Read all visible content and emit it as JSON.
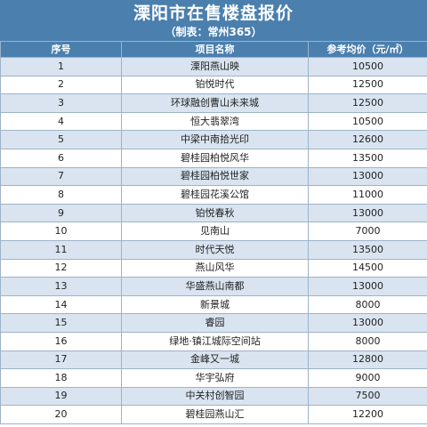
{
  "header": {
    "title": "溧阳市在售楼盘报价",
    "subtitle": "（制表：常州365）"
  },
  "columns": {
    "index": "序号",
    "name": "项目名称",
    "price": "参考均价（元/㎡）"
  },
  "rows": [
    {
      "no": "1",
      "name": "溧阳燕山映",
      "price": "10500"
    },
    {
      "no": "2",
      "name": "铂悦时代",
      "price": "12500"
    },
    {
      "no": "3",
      "name": "环球融创曹山未来城",
      "price": "12500"
    },
    {
      "no": "4",
      "name": "恒大翡翠湾",
      "price": "10500"
    },
    {
      "no": "5",
      "name": "中梁中南拾光印",
      "price": "12600"
    },
    {
      "no": "6",
      "name": "碧桂园柏悦风华",
      "price": "13500"
    },
    {
      "no": "7",
      "name": "碧桂园柏悦世家",
      "price": "13000"
    },
    {
      "no": "8",
      "name": "碧桂园花溪公馆",
      "price": "11000"
    },
    {
      "no": "9",
      "name": "铂悦春秋",
      "price": "13000"
    },
    {
      "no": "10",
      "name": "见南山",
      "price": "7000"
    },
    {
      "no": "11",
      "name": "时代天悦",
      "price": "13500"
    },
    {
      "no": "12",
      "name": "燕山风华",
      "price": "14500"
    },
    {
      "no": "13",
      "name": "华盛燕山南都",
      "price": "13000"
    },
    {
      "no": "14",
      "name": "新景城",
      "price": "8000"
    },
    {
      "no": "15",
      "name": "睿园",
      "price": "13000"
    },
    {
      "no": "16",
      "name": "绿地·镇江城际空间站",
      "price": "8000"
    },
    {
      "no": "17",
      "name": "金峰又一城",
      "price": "12800"
    },
    {
      "no": "18",
      "name": "华宇弘府",
      "price": "9000"
    },
    {
      "no": "19",
      "name": "中关村创智园",
      "price": "7500"
    },
    {
      "no": "20",
      "name": "碧桂园燕山汇",
      "price": "12200"
    }
  ]
}
